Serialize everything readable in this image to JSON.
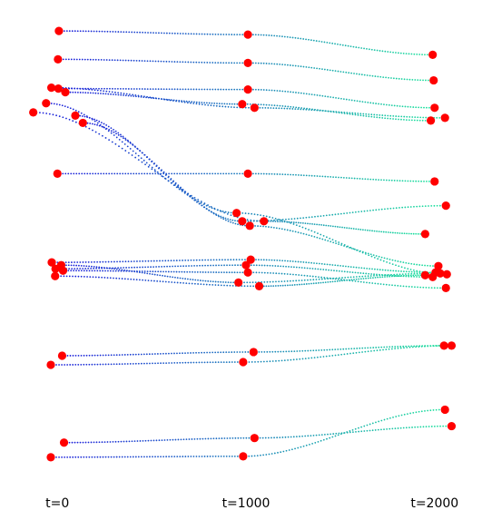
{
  "chart_data": {
    "type": "scatter",
    "description_of_encoding": "",
    "x_ticks": [
      {
        "value": 0,
        "label": "t=0"
      },
      {
        "value": 1000,
        "label": "t=1000"
      },
      {
        "value": 2000,
        "label": "t=2000"
      }
    ],
    "xlim": [
      -160,
      2160
    ],
    "ylim": [
      0,
      1
    ],
    "grid": false,
    "axes_visible": false,
    "colors": {
      "marker": "#ff0000",
      "trail_start": "#1a1adc",
      "trail_end": "#19e39a"
    },
    "trajectories": [
      {
        "points": [
          [
            8,
            0.968
          ],
          [
            1010,
            0.96
          ],
          [
            1990,
            0.916
          ]
        ]
      },
      {
        "points": [
          [
            3,
            0.906
          ],
          [
            1010,
            0.898
          ],
          [
            1995,
            0.86
          ]
        ]
      },
      {
        "points": [
          [
            5,
            0.842
          ],
          [
            1010,
            0.84
          ],
          [
            2000,
            0.8
          ]
        ]
      },
      {
        "points": [
          [
            42,
            0.834
          ],
          [
            980,
            0.808
          ],
          [
            1980,
            0.772
          ]
        ]
      },
      {
        "points": [
          [
            -32,
            0.844
          ],
          [
            1045,
            0.8
          ],
          [
            2055,
            0.778
          ]
        ]
      },
      {
        "points": [
          [
            -128,
            0.79
          ],
          [
            1095,
            0.552
          ],
          [
            1950,
            0.524
          ]
        ]
      },
      {
        "points": [
          [
            -60,
            0.81
          ],
          [
            950,
            0.57
          ],
          [
            2065,
            0.436
          ]
        ]
      },
      {
        "points": [
          [
            0,
            0.656
          ],
          [
            1010,
            0.656
          ],
          [
            2000,
            0.639
          ]
        ]
      },
      {
        "points": [
          [
            95,
            0.783
          ],
          [
            980,
            0.552
          ],
          [
            2060,
            0.586
          ]
        ]
      },
      {
        "points": [
          [
            135,
            0.767
          ],
          [
            1020,
            0.542
          ],
          [
            2020,
            0.454
          ]
        ]
      },
      {
        "points": [
          [
            -30,
            0.462
          ],
          [
            1025,
            0.468
          ],
          [
            2005,
            0.44
          ]
        ]
      },
      {
        "points": [
          [
            -10,
            0.448
          ],
          [
            1000,
            0.456
          ],
          [
            1990,
            0.43
          ]
        ]
      },
      {
        "points": [
          [
            -12,
            0.432
          ],
          [
            1070,
            0.41
          ],
          [
            1950,
            0.434
          ]
        ]
      },
      {
        "points": [
          [
            20,
            0.456
          ],
          [
            960,
            0.418
          ],
          [
            2030,
            0.438
          ]
        ]
      },
      {
        "points": [
          [
            30,
            0.444
          ],
          [
            1010,
            0.44
          ],
          [
            2060,
            0.406
          ]
        ]
      },
      {
        "points": [
          [
            25,
            0.258
          ],
          [
            1040,
            0.266
          ],
          [
            2050,
            0.28
          ]
        ]
      },
      {
        "points": [
          [
            -35,
            0.238
          ],
          [
            985,
            0.244
          ],
          [
            2090,
            0.28
          ]
        ]
      },
      {
        "points": [
          [
            35,
            0.068
          ],
          [
            1045,
            0.078
          ],
          [
            2090,
            0.104
          ]
        ]
      },
      {
        "points": [
          [
            -35,
            0.036
          ],
          [
            985,
            0.038
          ],
          [
            2055,
            0.14
          ]
        ]
      }
    ]
  }
}
